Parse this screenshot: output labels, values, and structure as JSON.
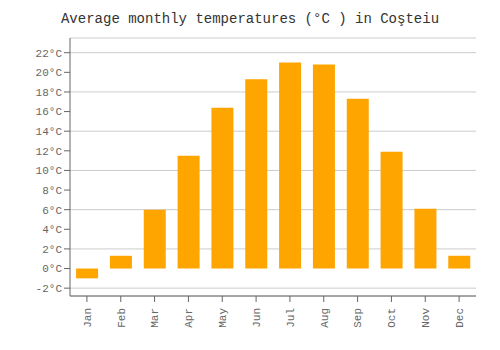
{
  "chart_data": {
    "type": "bar",
    "title": "Average monthly temperatures (°C ) in Coşteiu",
    "categories": [
      "Jan",
      "Feb",
      "Mar",
      "Apr",
      "May",
      "Jun",
      "Jul",
      "Aug",
      "Sep",
      "Oct",
      "Nov",
      "Dec"
    ],
    "values": [
      -1.0,
      1.3,
      6.0,
      11.5,
      16.4,
      19.3,
      21.0,
      20.8,
      17.3,
      11.9,
      6.1,
      1.3
    ],
    "color": "#FFA500",
    "ylim": [
      -2.8,
      23.5
    ],
    "yticks": [
      {
        "value": -2,
        "label": "-2°C"
      },
      {
        "value": 0,
        "label": "0°C"
      },
      {
        "value": 2,
        "label": "2°C"
      },
      {
        "value": 4,
        "label": "4°C"
      },
      {
        "value": 6,
        "label": "6°C"
      },
      {
        "value": 8,
        "label": "8°C"
      },
      {
        "value": 10,
        "label": "10°C"
      },
      {
        "value": 12,
        "label": "12°C"
      },
      {
        "value": 14,
        "label": "14°C"
      },
      {
        "value": 16,
        "label": "16°C"
      },
      {
        "value": 18,
        "label": "18°C"
      },
      {
        "value": 20,
        "label": "20°C"
      },
      {
        "value": 22,
        "label": "22°C"
      }
    ],
    "grid": true
  }
}
